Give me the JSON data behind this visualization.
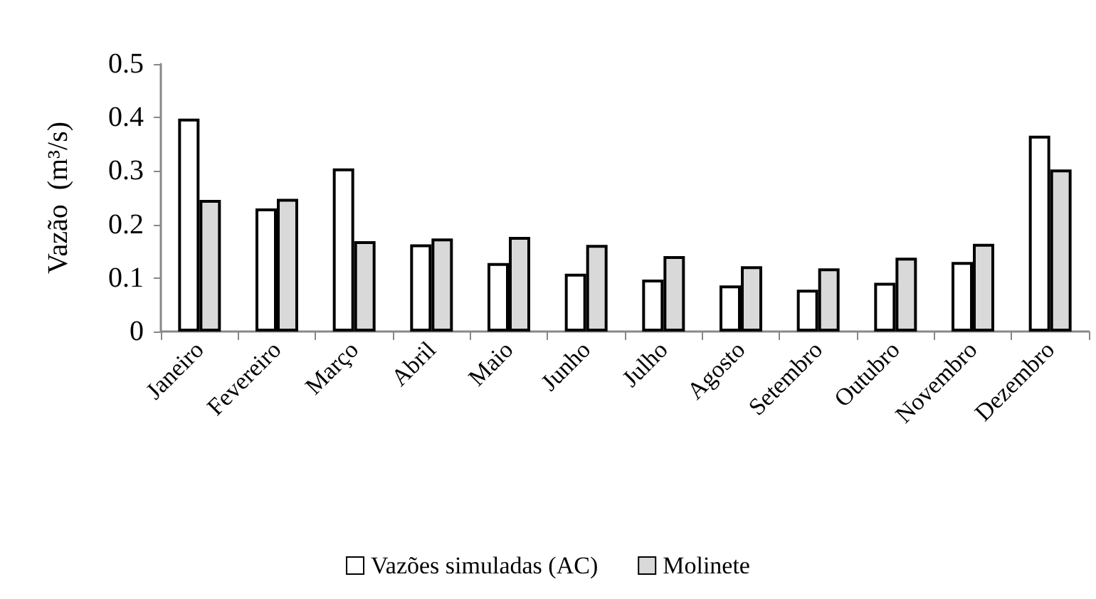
{
  "chart_data": {
    "type": "bar",
    "ylabel": "Vazão  (m³/s)",
    "categories": [
      "Janeiro",
      "Fevereiro",
      "Março",
      "Abril",
      "Maio",
      "Junho",
      "Julho",
      "Agosto",
      "Setembro",
      "Outubro",
      "Novembro",
      "Dezembro"
    ],
    "series": [
      {
        "name": "Vazões simuladas (AC)",
        "color": "#ffffff",
        "values": [
          0.398,
          0.23,
          0.305,
          0.163,
          0.128,
          0.108,
          0.097,
          0.086,
          0.078,
          0.091,
          0.13,
          0.366
        ]
      },
      {
        "name": "Molinete",
        "color": "#d9d9d9",
        "values": [
          0.246,
          0.248,
          0.169,
          0.174,
          0.177,
          0.162,
          0.141,
          0.122,
          0.118,
          0.138,
          0.164,
          0.303
        ]
      }
    ],
    "ylim": [
      0,
      0.5
    ],
    "yticks": [
      0,
      0.1,
      0.2,
      0.3,
      0.4,
      0.5
    ],
    "grid": false,
    "legend": "bottom"
  }
}
